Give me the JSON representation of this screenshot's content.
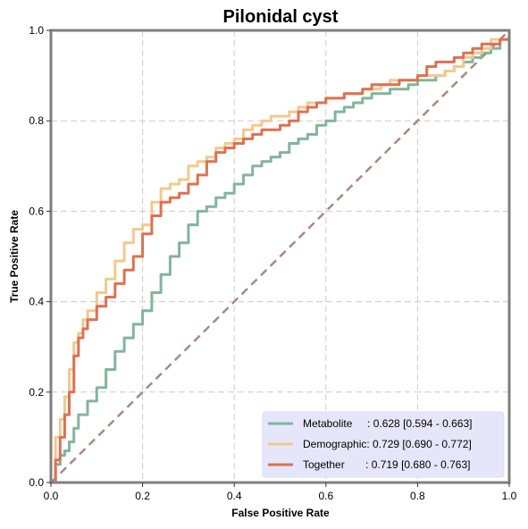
{
  "chart_data": {
    "type": "line",
    "title": "Pilonidal cyst",
    "xlabel": "False Positive Rate",
    "ylabel": "True Positive Rate",
    "xlim": [
      0,
      1
    ],
    "ylim": [
      0,
      1
    ],
    "xticks": [
      "0.0",
      "0.2",
      "0.4",
      "0.6",
      "0.8",
      "1.0"
    ],
    "yticks": [
      "0.0",
      "0.2",
      "0.4",
      "0.6",
      "0.8",
      "1.0"
    ],
    "grid": true,
    "legend_position": "lower-right",
    "legend_background": "#e6e6fa",
    "diagonal": {
      "x": [
        0,
        1
      ],
      "y": [
        0,
        1
      ],
      "color": "#a88a7a",
      "dashed": true
    },
    "series": [
      {
        "name": "Metabolite",
        "legend_label": "Metabolite     : 0.628 [0.594 - 0.663]",
        "color": "#82b59b",
        "x": [
          0,
          0.01,
          0.02,
          0.03,
          0.04,
          0.05,
          0.06,
          0.08,
          0.1,
          0.12,
          0.14,
          0.16,
          0.18,
          0.2,
          0.22,
          0.24,
          0.26,
          0.28,
          0.3,
          0.32,
          0.34,
          0.36,
          0.38,
          0.4,
          0.42,
          0.44,
          0.46,
          0.48,
          0.5,
          0.52,
          0.54,
          0.56,
          0.58,
          0.6,
          0.62,
          0.64,
          0.66,
          0.68,
          0.7,
          0.72,
          0.74,
          0.76,
          0.78,
          0.8,
          0.82,
          0.84,
          0.86,
          0.88,
          0.9,
          0.92,
          0.94,
          0.96,
          0.98,
          1.0
        ],
        "y": [
          0,
          0.04,
          0.06,
          0.07,
          0.09,
          0.12,
          0.15,
          0.18,
          0.21,
          0.25,
          0.29,
          0.32,
          0.35,
          0.38,
          0.42,
          0.46,
          0.5,
          0.53,
          0.57,
          0.6,
          0.61,
          0.63,
          0.64,
          0.66,
          0.68,
          0.7,
          0.71,
          0.72,
          0.73,
          0.75,
          0.76,
          0.77,
          0.79,
          0.8,
          0.82,
          0.83,
          0.84,
          0.85,
          0.86,
          0.86,
          0.87,
          0.87,
          0.88,
          0.89,
          0.89,
          0.9,
          0.91,
          0.92,
          0.93,
          0.94,
          0.95,
          0.96,
          0.98,
          1.0
        ]
      },
      {
        "name": "Demographic",
        "legend_label": "Demographic: 0.729 [0.690 - 0.772]",
        "color": "#f2c98e",
        "x": [
          0,
          0.01,
          0.02,
          0.03,
          0.04,
          0.05,
          0.06,
          0.07,
          0.08,
          0.1,
          0.12,
          0.14,
          0.16,
          0.18,
          0.2,
          0.22,
          0.24,
          0.26,
          0.28,
          0.3,
          0.32,
          0.34,
          0.36,
          0.38,
          0.4,
          0.42,
          0.44,
          0.46,
          0.48,
          0.5,
          0.52,
          0.54,
          0.56,
          0.58,
          0.6,
          0.62,
          0.64,
          0.66,
          0.68,
          0.7,
          0.72,
          0.74,
          0.76,
          0.78,
          0.8,
          0.82,
          0.84,
          0.86,
          0.88,
          0.9,
          0.92,
          0.94,
          0.96,
          0.98,
          1.0
        ],
        "y": [
          0,
          0.1,
          0.14,
          0.19,
          0.25,
          0.31,
          0.33,
          0.36,
          0.38,
          0.42,
          0.45,
          0.49,
          0.53,
          0.56,
          0.57,
          0.62,
          0.65,
          0.66,
          0.67,
          0.7,
          0.71,
          0.72,
          0.74,
          0.75,
          0.76,
          0.78,
          0.79,
          0.8,
          0.81,
          0.81,
          0.82,
          0.83,
          0.84,
          0.84,
          0.85,
          0.85,
          0.86,
          0.86,
          0.87,
          0.87,
          0.88,
          0.89,
          0.89,
          0.89,
          0.9,
          0.9,
          0.9,
          0.91,
          0.92,
          0.94,
          0.95,
          0.96,
          0.98,
          0.98,
          1.0
        ]
      },
      {
        "name": "Together",
        "legend_label": "Together       : 0.719 [0.680 - 0.763]",
        "color": "#de7150",
        "x": [
          0,
          0.01,
          0.02,
          0.03,
          0.04,
          0.05,
          0.06,
          0.07,
          0.08,
          0.1,
          0.12,
          0.14,
          0.16,
          0.18,
          0.2,
          0.22,
          0.24,
          0.26,
          0.28,
          0.3,
          0.32,
          0.34,
          0.36,
          0.38,
          0.4,
          0.42,
          0.44,
          0.46,
          0.48,
          0.5,
          0.52,
          0.54,
          0.56,
          0.58,
          0.6,
          0.62,
          0.64,
          0.66,
          0.68,
          0.7,
          0.72,
          0.74,
          0.76,
          0.78,
          0.8,
          0.82,
          0.84,
          0.86,
          0.88,
          0.9,
          0.92,
          0.94,
          0.96,
          0.98,
          1.0
        ],
        "y": [
          0,
          0.05,
          0.1,
          0.15,
          0.2,
          0.28,
          0.32,
          0.34,
          0.36,
          0.39,
          0.41,
          0.44,
          0.47,
          0.5,
          0.55,
          0.59,
          0.62,
          0.63,
          0.64,
          0.66,
          0.68,
          0.71,
          0.73,
          0.74,
          0.75,
          0.76,
          0.77,
          0.78,
          0.78,
          0.79,
          0.8,
          0.82,
          0.83,
          0.84,
          0.85,
          0.85,
          0.86,
          0.86,
          0.87,
          0.88,
          0.88,
          0.88,
          0.89,
          0.89,
          0.9,
          0.92,
          0.93,
          0.93,
          0.94,
          0.95,
          0.96,
          0.97,
          0.97,
          0.98,
          1.0
        ]
      }
    ]
  }
}
